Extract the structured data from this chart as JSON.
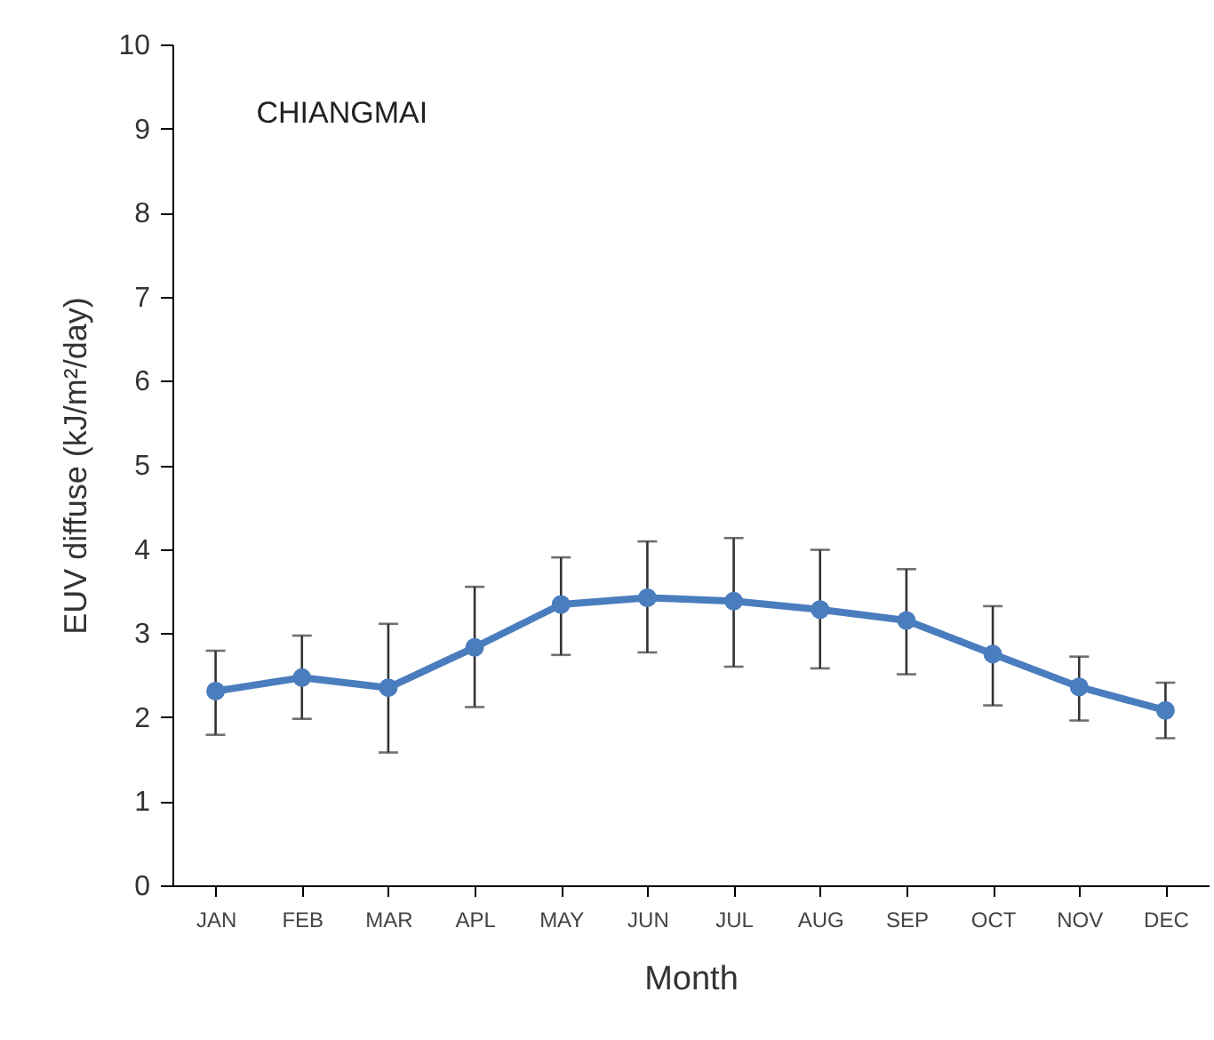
{
  "chart_data": {
    "type": "line",
    "title": "CHIANGMAI",
    "xlabel": "Month",
    "ylabel": "EUV diffuse (kJ/m²/day)",
    "categories": [
      "JAN",
      "FEB",
      "MAR",
      "APL",
      "MAY",
      "JUN",
      "JUL",
      "AUG",
      "SEP",
      "OCT",
      "NOV",
      "DEC"
    ],
    "series": [
      {
        "color": "#4a7dbe",
        "values": [
          2.31,
          2.47,
          2.35,
          2.83,
          3.34,
          3.42,
          3.38,
          3.28,
          3.15,
          2.75,
          2.36,
          2.08
        ],
        "errors": [
          [
            1.79,
            2.79
          ],
          [
            1.98,
            2.97
          ],
          [
            1.58,
            3.11
          ],
          [
            2.12,
            3.55
          ],
          [
            2.74,
            3.9
          ],
          [
            2.77,
            4.09
          ],
          [
            2.6,
            4.13
          ],
          [
            2.58,
            3.99
          ],
          [
            2.51,
            3.76
          ],
          [
            2.14,
            3.32
          ],
          [
            1.96,
            2.72
          ],
          [
            1.75,
            2.41
          ]
        ]
      }
    ],
    "ylim": [
      0,
      10
    ],
    "yticks": [
      0,
      1,
      2,
      3,
      4,
      5,
      6,
      7,
      8,
      9,
      10
    ],
    "grid": false,
    "marker": "circle",
    "line_style": "solid"
  }
}
